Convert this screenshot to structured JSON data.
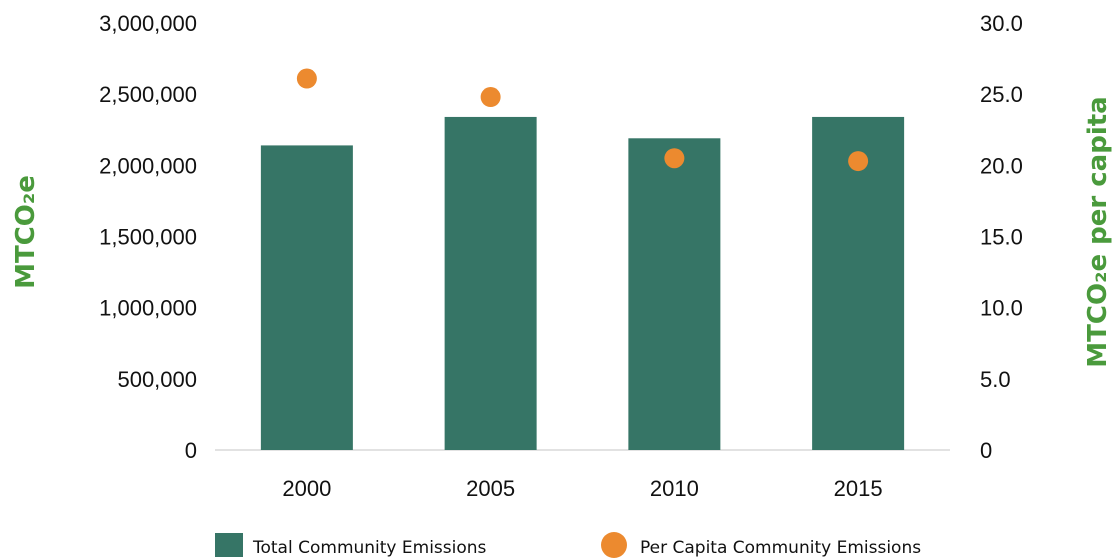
{
  "chart_data": {
    "type": "bar",
    "categories": [
      "2000",
      "2005",
      "2010",
      "2015"
    ],
    "series": [
      {
        "name": "Total Community Emissions",
        "type": "bar",
        "axis": "left",
        "values": [
          2140000,
          2340000,
          2190000,
          2340000
        ]
      },
      {
        "name": "Per Capita Community Emissions",
        "type": "scatter",
        "axis": "right",
        "values": [
          26.1,
          24.8,
          20.5,
          20.3
        ]
      }
    ],
    "ylabel": "MTCO₂e",
    "y2label": "MTCO₂e per capita",
    "ylim": [
      0,
      3000000
    ],
    "y2lim": [
      0,
      30
    ],
    "yticks": [
      "0",
      "500,000",
      "1,000,000",
      "1,500,000",
      "2,000,000",
      "2,500,000",
      "3,000,000"
    ],
    "y2ticks": [
      "0",
      "5.0",
      "10.0",
      "15.0",
      "20.0",
      "25.0",
      "30.0"
    ],
    "grid": false,
    "legend": "bottom"
  },
  "colors": {
    "bar": "#367566",
    "dot": "#ec8a2f",
    "axis_title": "#4a9a3c",
    "axis_line": "#d9d9d9"
  }
}
